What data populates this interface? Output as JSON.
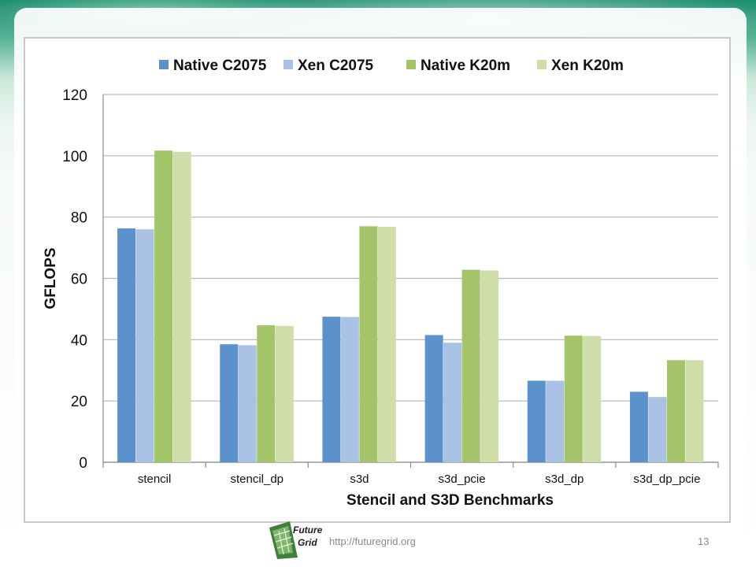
{
  "slide": {
    "footer_url": "http://futuregrid.org",
    "page_number": "13",
    "logo_line1": "Future",
    "logo_line2": "Grid"
  },
  "colors": {
    "native_c2075": "#5b92cc",
    "xen_c2075": "#a9c2e3",
    "native_k20m": "#a4c46a",
    "xen_k20m": "#cfdea9",
    "grid": "#b5b5b5"
  },
  "chart_data": {
    "type": "bar",
    "title": "",
    "xlabel": "Stencil and S3D Benchmarks",
    "ylabel": "GFLOPS",
    "ylim": [
      0,
      120
    ],
    "yticks": [
      0,
      20,
      40,
      60,
      80,
      100,
      120
    ],
    "grid": true,
    "legend_position": "top",
    "categories": [
      "stencil",
      "stencil_dp",
      "s3d",
      "s3d_pcie",
      "s3d_dp",
      "s3d_dp_pcie"
    ],
    "series": [
      {
        "name": "Native C2075",
        "color": "#5b92cc",
        "values": [
          76.3,
          38.5,
          47.5,
          41.5,
          26.6,
          23.0
        ]
      },
      {
        "name": "Xen C2075",
        "color": "#a9c2e3",
        "values": [
          76.0,
          38.2,
          47.4,
          39.0,
          26.6,
          21.3
        ]
      },
      {
        "name": "Native K20m",
        "color": "#a4c46a",
        "values": [
          101.7,
          44.7,
          77.0,
          62.8,
          41.3,
          33.3
        ]
      },
      {
        "name": "Xen K20m",
        "color": "#cfdea9",
        "values": [
          101.3,
          44.5,
          76.8,
          62.6,
          41.2,
          33.3
        ]
      }
    ]
  }
}
